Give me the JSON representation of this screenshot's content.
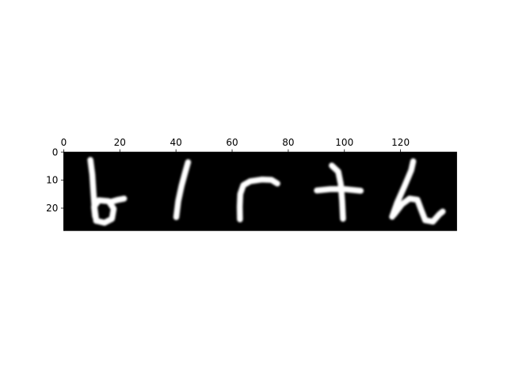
{
  "chart_data": {
    "type": "heatmap",
    "title": "",
    "xlabel": "",
    "ylabel": "",
    "colormap": "gray",
    "image_size": [
      140,
      28
    ],
    "xlim": [
      0,
      140
    ],
    "ylim": [
      28,
      0
    ],
    "xticks": [
      0,
      20,
      40,
      60,
      80,
      100,
      120
    ],
    "yticks": [
      0,
      10,
      20
    ],
    "x_tick_position": "top",
    "content": "handwritten character strokes, white on black",
    "glyphs": [
      {
        "name": "b",
        "strokes": [
          [
            [
              9.5,
              2.8
            ],
            [
              10.2,
              8
            ],
            [
              10.6,
              14.5
            ],
            [
              11,
              20
            ],
            [
              11.6,
              24.5
            ]
          ],
          [
            [
              11.6,
              24.5
            ],
            [
              14.5,
              25.2
            ],
            [
              17.2,
              23.8
            ],
            [
              17.8,
              20.2
            ],
            [
              16,
              17.5
            ],
            [
              12.5,
              17.2
            ],
            [
              10.8,
              19.5
            ],
            [
              11.2,
              23
            ]
          ],
          [
            [
              16.5,
              17.8
            ],
            [
              19.5,
              17
            ],
            [
              21.5,
              16.6
            ]
          ]
        ]
      },
      {
        "name": "l",
        "strokes": [
          [
            [
              44.3,
              3.6
            ],
            [
              43.2,
              7.5
            ],
            [
              42,
              12
            ],
            [
              40.8,
              17.5
            ],
            [
              40.1,
              23.2
            ]
          ]
        ]
      },
      {
        "name": "r",
        "strokes": [
          [
            [
              62.8,
              24
            ],
            [
              62.7,
              19.5
            ],
            [
              62.9,
              15
            ],
            [
              64,
              11.8
            ],
            [
              66.5,
              10.4
            ],
            [
              70.5,
              9.8
            ],
            [
              74,
              9.9
            ],
            [
              76.1,
              11.2
            ]
          ]
        ]
      },
      {
        "name": "t",
        "strokes": [
          [
            [
              90.2,
              13.7
            ],
            [
              95,
              13.2
            ],
            [
              100,
              13.2
            ],
            [
              105.8,
              13.8
            ]
          ],
          [
            [
              95.5,
              4.8
            ],
            [
              97.8,
              7
            ],
            [
              98.7,
              11.5
            ],
            [
              99.2,
              17.5
            ],
            [
              99.5,
              23.8
            ]
          ]
        ]
      },
      {
        "name": "h",
        "strokes": [
          [
            [
              124.5,
              3.3
            ],
            [
              123.8,
              6.5
            ],
            [
              121.5,
              12
            ],
            [
              118.8,
              18
            ],
            [
              117,
              23.1
            ]
          ],
          [
            [
              117.6,
              22.4
            ],
            [
              120.5,
              18.6
            ],
            [
              123.2,
              16.6
            ],
            [
              126,
              17
            ],
            [
              127.3,
              20.5
            ],
            [
              128.8,
              24.3
            ],
            [
              131.5,
              24.8
            ],
            [
              133.8,
              22.2
            ],
            [
              135,
              21.2
            ]
          ]
        ]
      }
    ]
  }
}
